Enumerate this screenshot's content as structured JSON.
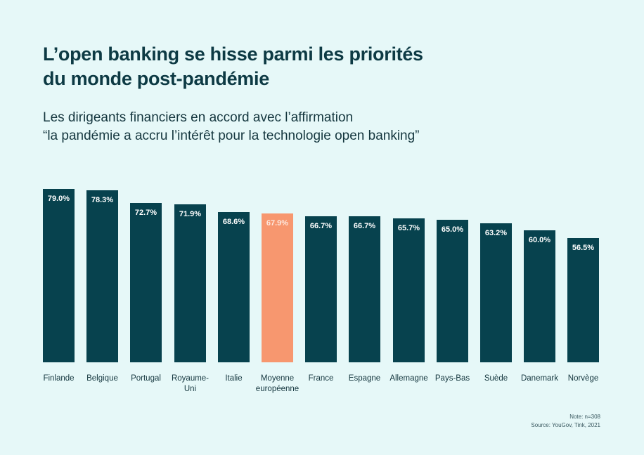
{
  "title_line1": "L’open banking se hisse parmi les priorités",
  "title_line2": "du monde post-pandémie",
  "subtitle_line1": "Les dirigeants financiers en accord avec l’affirmation",
  "subtitle_line2": "“la pandémie a accru l’intérêt pour la technologie open banking”",
  "note": "Note: n=308",
  "source": "Source: YouGov, Tink, 2021",
  "colors": {
    "bar": "#07424e",
    "highlight": "#f7976f",
    "background": "#e6f8f8"
  },
  "bars": [
    {
      "label": "Finlande",
      "value_label": "79.0%"
    },
    {
      "label": "Belgique",
      "value_label": "78.3%"
    },
    {
      "label": "Portugal",
      "value_label": "72.7%"
    },
    {
      "label": "Royaume-\nUni",
      "value_label": "71.9%"
    },
    {
      "label": "Italie",
      "value_label": "68.6%"
    },
    {
      "label": "Moyenne\neuropéenne",
      "value_label": "67.9%"
    },
    {
      "label": "France",
      "value_label": "66.7%"
    },
    {
      "label": "Espagne",
      "value_label": "66.7%"
    },
    {
      "label": "Allemagne",
      "value_label": "65.7%"
    },
    {
      "label": "Pays-Bas",
      "value_label": "65.0%"
    },
    {
      "label": "Suède",
      "value_label": "63.2%"
    },
    {
      "label": "Danemark",
      "value_label": "60.0%"
    },
    {
      "label": "Norvège",
      "value_label": "56.5%"
    }
  ],
  "chart_data": {
    "type": "bar",
    "title": "L’open banking se hisse parmi les priorités du monde post-pandémie",
    "subtitle": "Les dirigeants financiers en accord avec l’affirmation “la pandémie a accru l’intérêt pour la technologie open banking”",
    "categories": [
      "Finlande",
      "Belgique",
      "Portugal",
      "Royaume-Uni",
      "Italie",
      "Moyenne européenne",
      "France",
      "Espagne",
      "Allemagne",
      "Pays-Bas",
      "Suède",
      "Danemark",
      "Norvège"
    ],
    "values": [
      79.0,
      78.3,
      72.7,
      71.9,
      68.6,
      67.9,
      66.7,
      66.7,
      65.7,
      65.0,
      63.2,
      60.0,
      56.5
    ],
    "highlight_category": "Moyenne européenne",
    "xlabel": "",
    "ylabel": "",
    "ylim": [
      0,
      79
    ],
    "grid": false,
    "legend": "none",
    "unit": "%",
    "annotations": [
      "Note: n=308",
      "Source: YouGov, Tink, 2021"
    ]
  }
}
